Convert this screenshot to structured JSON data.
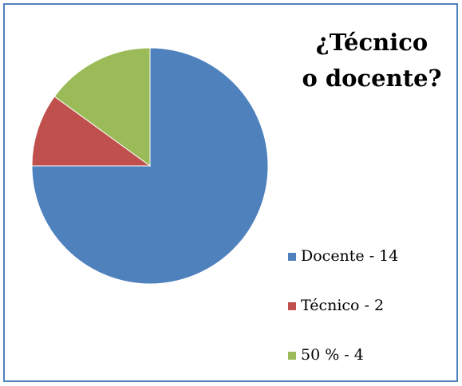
{
  "chart_data": {
    "type": "pie",
    "title_lines": [
      "¿Técnico",
      "o docente?"
    ],
    "categories": [
      "Docente - 14",
      "Técnico - 2",
      "50 % - 4"
    ],
    "values": [
      75,
      10,
      15
    ],
    "colors": [
      "#4f81bd",
      "#c0504d",
      "#9bbb59"
    ],
    "legend": "right"
  }
}
